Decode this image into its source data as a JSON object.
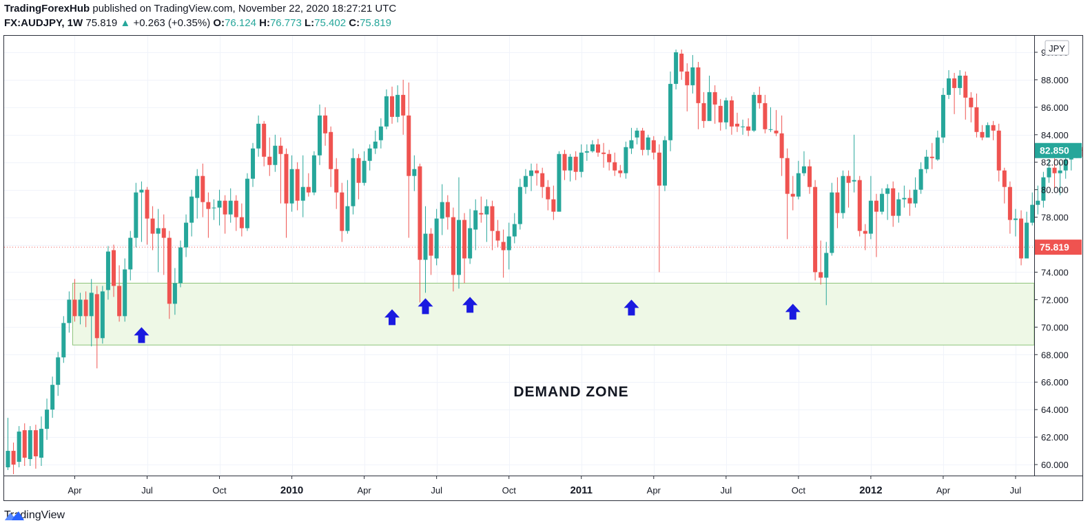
{
  "header": {
    "author": "TradingForexHub",
    "published": "published on TradingView.com, November 22, 2020 18:27:21 UTC",
    "symbol": "FX:AUDJPY, 1W",
    "last": "75.819",
    "arrow": "▲",
    "change": "+0.263 (+0.35%)",
    "o_label": "O:",
    "o_val": "76.124",
    "h_label": "H:",
    "h_val": "76.773",
    "l_label": "L:",
    "l_val": "75.402",
    "c_label": "C:",
    "c_val": "75.819"
  },
  "footer": {
    "brand": "TradingView"
  },
  "colors": {
    "up": "#26a69a",
    "down": "#ef5350",
    "zone_fill": "#eef8e6",
    "zone_border": "#8cc37a",
    "arrow": "#1a1ae0"
  },
  "chart_data": {
    "type": "candlestick",
    "currency_badge": "JPY",
    "price_labels": {
      "current": "75.819",
      "last_close": "82.850"
    },
    "current_price": 75.819,
    "last_price": 82.85,
    "ylim": [
      59.2,
      91.2
    ],
    "y_ticks": [
      "60.000",
      "62.000",
      "64.000",
      "66.000",
      "68.000",
      "70.000",
      "72.000",
      "74.000",
      "76.000",
      "78.000",
      "80.000",
      "82.000",
      "84.000",
      "86.000",
      "88.000",
      "90.000"
    ],
    "x_ticks": [
      "Apr",
      "Jul",
      "Oct",
      "2010",
      "Apr",
      "Jul",
      "Oct",
      "2011",
      "Apr",
      "Jul",
      "Oct",
      "2012",
      "Apr",
      "Jul"
    ],
    "x_tick_weeks": [
      12,
      25,
      38,
      51,
      64,
      77,
      90,
      103,
      116,
      129,
      142,
      155,
      168,
      181
    ],
    "demand_zone": {
      "label": "DEMAND ZONE",
      "low": 68.7,
      "high": 73.2,
      "start_week": 12
    },
    "arrows": [
      {
        "week": 24,
        "price": 69.4
      },
      {
        "week": 69,
        "price": 70.7
      },
      {
        "week": 75,
        "price": 71.5
      },
      {
        "week": 83,
        "price": 71.6
      },
      {
        "week": 112,
        "price": 71.4
      },
      {
        "week": 141,
        "price": 71.1
      }
    ],
    "candles": [
      [
        59.8,
        61.0,
        63.4,
        59.6
      ],
      [
        61.0,
        60.0,
        61.6,
        59.3
      ],
      [
        60.2,
        62.4,
        62.8,
        59.8
      ],
      [
        62.5,
        60.5,
        63.0,
        59.9
      ],
      [
        60.4,
        62.5,
        62.8,
        59.9
      ],
      [
        62.5,
        60.6,
        62.9,
        59.7
      ],
      [
        60.5,
        62.6,
        63.5,
        59.9
      ],
      [
        62.6,
        64.0,
        64.8,
        61.8
      ],
      [
        64.0,
        65.8,
        66.4,
        63.4
      ],
      [
        65.8,
        67.8,
        68.2,
        65.0
      ],
      [
        67.8,
        70.3,
        70.8,
        67.4
      ],
      [
        70.3,
        72.0,
        72.6,
        69.6
      ],
      [
        72.0,
        70.8,
        73.5,
        70.4
      ],
      [
        70.8,
        72.0,
        72.5,
        70.2
      ],
      [
        72.0,
        70.8,
        72.6,
        70.0
      ],
      [
        70.8,
        72.5,
        73.5,
        68.6
      ],
      [
        72.4,
        69.2,
        73.0,
        67.0
      ],
      [
        69.2,
        72.6,
        73.0,
        68.8
      ],
      [
        72.7,
        75.5,
        75.9,
        72.0
      ],
      [
        75.6,
        73.0,
        76.0,
        72.2
      ],
      [
        73.0,
        70.8,
        74.5,
        70.4
      ],
      [
        70.8,
        74.2,
        75.0,
        70.4
      ],
      [
        74.2,
        76.5,
        77.0,
        73.4
      ],
      [
        76.5,
        79.8,
        80.5,
        75.8
      ],
      [
        79.8,
        80.0,
        80.6,
        76.2
      ],
      [
        80.0,
        77.9,
        80.2,
        76.0
      ],
      [
        77.9,
        76.8,
        78.8,
        75.6
      ],
      [
        76.8,
        77.2,
        78.6,
        74.0
      ],
      [
        77.2,
        76.5,
        78.2,
        73.8
      ],
      [
        76.5,
        71.7,
        77.0,
        70.6
      ],
      [
        71.7,
        73.2,
        74.3,
        70.9
      ],
      [
        73.2,
        75.8,
        76.3,
        72.9
      ],
      [
        75.8,
        77.6,
        78.2,
        75.1
      ],
      [
        77.6,
        79.5,
        80.0,
        76.6
      ],
      [
        79.4,
        81.0,
        81.5,
        77.9
      ],
      [
        81.0,
        79.1,
        81.9,
        78.0
      ],
      [
        79.1,
        78.6,
        79.8,
        76.5
      ],
      [
        78.7,
        78.7,
        79.3,
        77.8
      ],
      [
        78.7,
        79.2,
        80.0,
        77.4
      ],
      [
        79.2,
        78.2,
        79.6,
        76.8
      ],
      [
        78.2,
        79.2,
        80.1,
        77.6
      ],
      [
        79.2,
        78.0,
        79.6,
        77.0
      ],
      [
        78.0,
        77.2,
        79.0,
        76.6
      ],
      [
        77.2,
        80.8,
        81.2,
        77.0
      ],
      [
        80.8,
        83.0,
        83.4,
        80.2
      ],
      [
        83.0,
        84.8,
        85.4,
        82.4
      ],
      [
        84.8,
        82.4,
        85.0,
        81.7
      ],
      [
        82.4,
        81.8,
        83.8,
        81.0
      ],
      [
        81.8,
        83.2,
        84.0,
        81.3
      ],
      [
        83.2,
        82.6,
        83.8,
        79.0
      ],
      [
        82.6,
        79.0,
        83.0,
        76.5
      ],
      [
        79.0,
        81.5,
        82.5,
        78.4
      ],
      [
        81.5,
        79.2,
        82.0,
        78.5
      ],
      [
        79.2,
        80.2,
        82.5,
        78.0
      ],
      [
        80.2,
        79.8,
        81.2,
        79.5
      ],
      [
        79.8,
        82.5,
        82.8,
        79.6
      ],
      [
        82.5,
        85.4,
        86.2,
        81.8
      ],
      [
        85.4,
        84.1,
        86.0,
        83.2
      ],
      [
        84.2,
        81.5,
        84.6,
        80.2
      ],
      [
        81.5,
        79.8,
        82.3,
        78.6
      ],
      [
        79.8,
        77.0,
        80.5,
        76.2
      ],
      [
        77.0,
        78.8,
        80.7,
        76.8
      ],
      [
        78.8,
        82.3,
        83.0,
        78.2
      ],
      [
        82.3,
        80.5,
        82.6,
        79.3
      ],
      [
        80.5,
        82.1,
        82.8,
        80.3
      ],
      [
        82.1,
        83.0,
        83.3,
        81.4
      ],
      [
        83.0,
        83.5,
        84.3,
        82.6
      ],
      [
        83.6,
        84.6,
        85.2,
        83.0
      ],
      [
        84.6,
        86.8,
        87.3,
        84.4
      ],
      [
        86.8,
        85.3,
        87.5,
        84.8
      ],
      [
        85.3,
        86.9,
        87.6,
        84.9
      ],
      [
        86.9,
        85.4,
        88.0,
        84.0
      ],
      [
        85.4,
        81.0,
        87.8,
        76.5
      ],
      [
        81.0,
        81.5,
        82.5,
        79.9
      ],
      [
        81.7,
        74.9,
        81.9,
        71.8
      ],
      [
        74.9,
        76.8,
        78.8,
        72.5
      ],
      [
        76.8,
        75.2,
        77.2,
        73.8
      ],
      [
        75.0,
        77.9,
        78.6,
        74.5
      ],
      [
        77.9,
        79.1,
        80.4,
        76.7
      ],
      [
        79.1,
        78.0,
        79.6,
        77.1
      ],
      [
        78.0,
        73.8,
        78.7,
        72.6
      ],
      [
        73.8,
        77.8,
        80.9,
        72.8
      ],
      [
        77.8,
        75.0,
        78.3,
        73.2
      ],
      [
        75.0,
        77.2,
        78.6,
        74.6
      ],
      [
        77.1,
        78.5,
        79.3,
        75.6
      ],
      [
        78.3,
        78.2,
        79.5,
        77.6
      ],
      [
        78.2,
        78.8,
        79.3,
        76.2
      ],
      [
        78.8,
        77.0,
        79.2,
        75.6
      ],
      [
        77.0,
        76.3,
        77.8,
        75.8
      ],
      [
        76.2,
        75.6,
        77.1,
        73.6
      ],
      [
        75.6,
        76.6,
        77.6,
        74.2
      ],
      [
        76.6,
        77.5,
        78.3,
        76.1
      ],
      [
        77.5,
        80.2,
        80.8,
        77.1
      ],
      [
        80.2,
        81.0,
        81.5,
        79.7
      ],
      [
        81.0,
        81.4,
        81.9,
        79.9
      ],
      [
        81.4,
        81.2,
        81.9,
        80.3
      ],
      [
        81.2,
        80.2,
        81.6,
        79.4
      ],
      [
        80.2,
        79.3,
        80.7,
        78.5
      ],
      [
        79.3,
        78.4,
        80.3,
        77.8
      ],
      [
        78.4,
        82.6,
        82.8,
        78.4
      ],
      [
        82.6,
        81.4,
        82.9,
        80.7
      ],
      [
        81.4,
        82.4,
        82.6,
        80.6
      ],
      [
        82.4,
        81.3,
        82.8,
        80.7
      ],
      [
        81.3,
        82.7,
        83.3,
        80.9
      ],
      [
        82.7,
        82.8,
        83.3,
        82.1
      ],
      [
        82.8,
        83.3,
        83.6,
        82.7
      ],
      [
        83.3,
        82.7,
        83.7,
        82.4
      ],
      [
        82.7,
        82.6,
        83.4,
        81.6
      ],
      [
        82.6,
        82.0,
        82.9,
        81.4
      ],
      [
        82.0,
        81.4,
        82.7,
        81.0
      ],
      [
        81.4,
        81.2,
        81.8,
        80.9
      ],
      [
        81.2,
        83.1,
        83.5,
        80.8
      ],
      [
        83.0,
        83.6,
        84.5,
        82.6
      ],
      [
        83.8,
        84.3,
        84.5,
        83.3
      ],
      [
        84.3,
        82.9,
        84.5,
        82.5
      ],
      [
        82.9,
        83.8,
        84.0,
        82.5
      ],
      [
        83.6,
        82.7,
        83.9,
        82.2
      ],
      [
        82.7,
        80.3,
        83.3,
        74.0
      ],
      [
        80.3,
        83.6,
        83.9,
        79.9
      ],
      [
        83.6,
        87.7,
        88.6,
        82.8
      ],
      [
        87.7,
        90.0,
        90.2,
        87.3
      ],
      [
        89.9,
        88.6,
        90.2,
        88.0
      ],
      [
        88.6,
        87.6,
        89.2,
        85.7
      ],
      [
        87.6,
        88.9,
        89.8,
        87.0
      ],
      [
        88.9,
        86.3,
        89.3,
        84.4
      ],
      [
        86.3,
        85.0,
        87.1,
        84.5
      ],
      [
        85.0,
        87.1,
        88.3,
        85.2
      ],
      [
        87.1,
        86.2,
        87.6,
        84.8
      ],
      [
        86.1,
        84.9,
        86.6,
        84.3
      ],
      [
        84.9,
        86.5,
        86.7,
        84.4
      ],
      [
        86.5,
        84.6,
        86.8,
        84.0
      ],
      [
        84.8,
        84.6,
        85.6,
        84.2
      ],
      [
        84.6,
        84.6,
        85.1,
        84.0
      ],
      [
        84.6,
        84.3,
        85.2,
        83.9
      ],
      [
        84.3,
        86.9,
        87.1,
        84.2
      ],
      [
        86.9,
        86.3,
        87.5,
        85.9
      ],
      [
        86.3,
        84.4,
        86.9,
        84.1
      ],
      [
        84.4,
        84.4,
        86.0,
        84.2
      ],
      [
        84.3,
        84.1,
        85.8,
        83.9
      ],
      [
        84.1,
        82.3,
        85.4,
        81.0
      ],
      [
        82.3,
        79.7,
        83.0,
        76.4
      ],
      [
        79.7,
        79.5,
        81.0,
        78.5
      ],
      [
        79.5,
        81.2,
        82.1,
        79.3
      ],
      [
        81.2,
        81.7,
        82.8,
        81.0
      ],
      [
        81.7,
        80.2,
        82.2,
        79.7
      ],
      [
        80.2,
        74.0,
        80.7,
        73.4
      ],
      [
        74.0,
        73.6,
        76.3,
        73.1
      ],
      [
        73.6,
        75.4,
        76.2,
        71.6
      ],
      [
        75.4,
        79.8,
        80.5,
        75.2
      ],
      [
        79.8,
        78.3,
        80.9,
        77.2
      ],
      [
        78.3,
        81.0,
        81.4,
        77.9
      ],
      [
        81.0,
        80.5,
        81.4,
        78.7
      ],
      [
        80.6,
        80.7,
        84.0,
        79.8
      ],
      [
        80.7,
        77.0,
        81.0,
        76.6
      ],
      [
        77.0,
        76.8,
        77.5,
        75.6
      ],
      [
        76.8,
        79.2,
        81.0,
        76.4
      ],
      [
        79.2,
        78.4,
        79.7,
        75.1
      ],
      [
        78.4,
        79.7,
        80.1,
        78.2
      ],
      [
        79.7,
        80.1,
        80.4,
        77.8
      ],
      [
        80.1,
        78.1,
        80.6,
        77.3
      ],
      [
        78.1,
        79.3,
        79.8,
        77.6
      ],
      [
        79.3,
        79.4,
        80.3,
        78.7
      ],
      [
        79.4,
        79.0,
        80.0,
        78.1
      ],
      [
        79.0,
        80.0,
        80.9,
        78.7
      ],
      [
        80.0,
        81.5,
        82.0,
        79.7
      ],
      [
        81.5,
        82.4,
        82.9,
        81.2
      ],
      [
        82.4,
        82.3,
        83.4,
        81.5
      ],
      [
        82.2,
        83.8,
        84.3,
        82.1
      ],
      [
        83.8,
        86.9,
        87.4,
        83.4
      ],
      [
        86.9,
        88.1,
        88.7,
        86.6
      ],
      [
        88.1,
        87.4,
        88.5,
        85.5
      ],
      [
        87.4,
        88.3,
        88.7,
        86.9
      ],
      [
        88.3,
        86.7,
        88.6,
        85.1
      ],
      [
        86.7,
        86.0,
        87.1,
        84.9
      ],
      [
        86.0,
        84.2,
        87.0,
        83.8
      ],
      [
        84.2,
        83.8,
        84.7,
        83.6
      ],
      [
        83.8,
        84.7,
        84.9,
        84.0
      ],
      [
        84.7,
        84.3,
        85.0,
        83.6
      ],
      [
        84.3,
        81.4,
        84.8,
        80.6
      ],
      [
        81.4,
        80.2,
        81.6,
        79.0
      ],
      [
        80.2,
        77.8,
        80.6,
        76.8
      ],
      [
        77.8,
        77.9,
        78.6,
        76.6
      ],
      [
        77.9,
        75.0,
        78.5,
        74.5
      ],
      [
        75.0,
        77.6,
        78.4,
        75.2
      ],
      [
        77.6,
        78.9,
        79.8,
        77.4
      ],
      [
        78.9,
        79.2,
        80.3,
        78.2
      ],
      [
        79.2,
        80.9,
        81.3,
        78.7
      ],
      [
        80.9,
        81.6,
        82.2,
        80.5
      ],
      [
        81.6,
        81.2,
        82.3,
        80.1
      ],
      [
        81.2,
        81.4,
        82.0,
        79.6
      ],
      [
        81.4,
        82.2,
        82.6,
        80.8
      ],
      [
        82.2,
        82.8,
        83.1,
        81.4
      ],
      [
        82.8,
        82.9,
        83.2,
        82.3
      ],
      [
        82.9,
        82.85,
        83.1,
        82.4
      ]
    ]
  }
}
